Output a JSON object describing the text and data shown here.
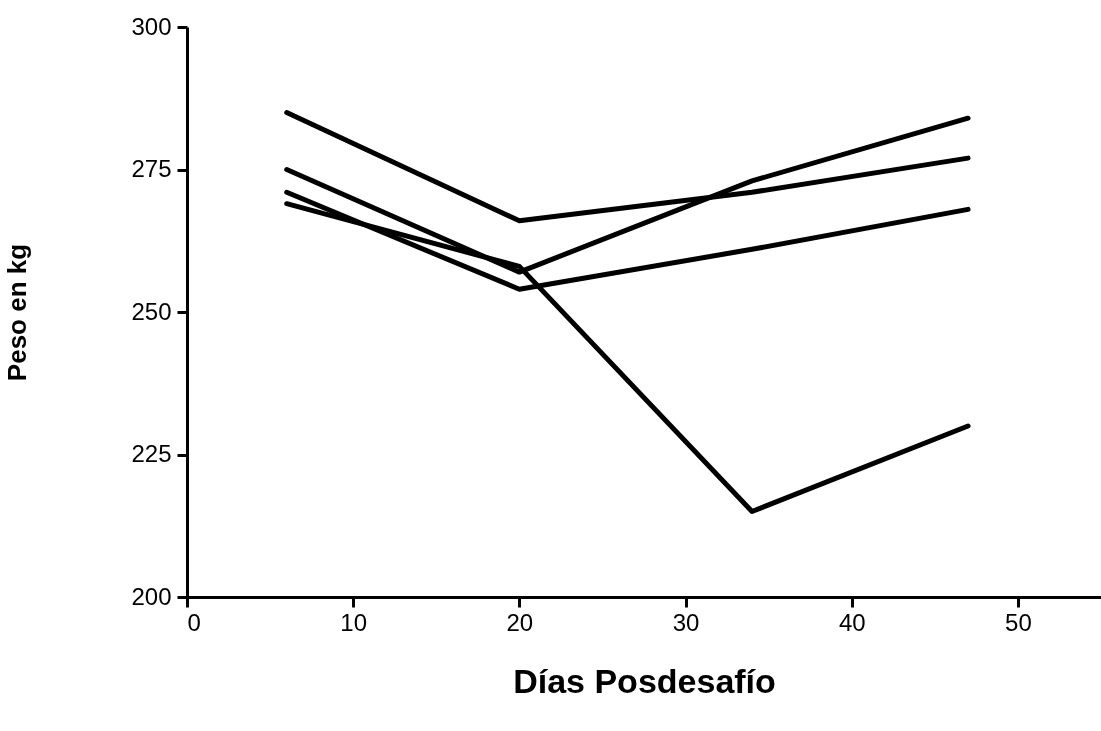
{
  "chart_data": {
    "type": "line",
    "xlabel": "Días Posdesafío",
    "ylabel": "Peso en kg",
    "x": [
      6,
      20,
      34,
      47
    ],
    "series": [
      {
        "color": "#000000",
        "values": [
          285,
          266,
          271,
          277
        ]
      },
      {
        "color": "#000000",
        "values": [
          275,
          257,
          273,
          284
        ]
      },
      {
        "color": "#000000",
        "values": [
          271,
          254,
          261,
          268
        ]
      },
      {
        "color": "#000000",
        "values": [
          269,
          258,
          215,
          230
        ]
      }
    ],
    "xlim": [
      0,
      55
    ],
    "xticks": [
      0,
      10,
      20,
      30,
      40,
      50
    ],
    "ylim": [
      200,
      300
    ],
    "yticks": [
      200,
      225,
      250,
      275,
      300
    ],
    "grid": false,
    "legend": false,
    "marker": "none",
    "line_style": "solid"
  }
}
